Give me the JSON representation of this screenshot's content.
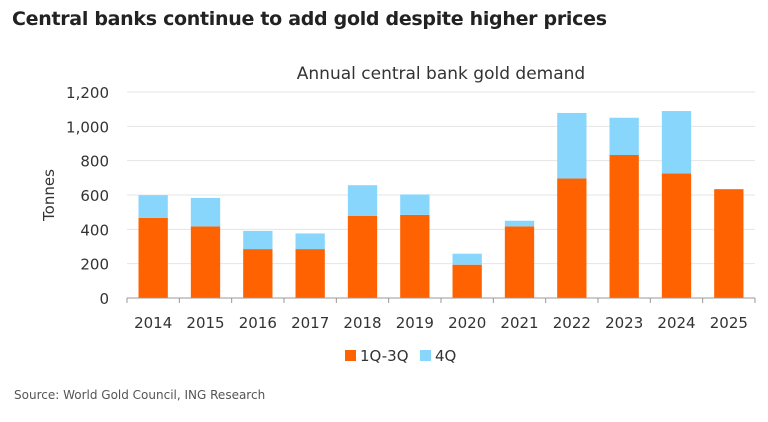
{
  "header": {
    "title": "Central banks continue to add gold despite higher prices"
  },
  "footer": {
    "source": "Source: World Gold Council, ING Research"
  },
  "chart_data": {
    "type": "bar",
    "stacked": true,
    "title": "Annual central bank gold demand",
    "xlabel": "",
    "ylabel": "Tonnes",
    "ylim": [
      0,
      1200
    ],
    "yticks": [
      0,
      200,
      400,
      600,
      800,
      1000,
      1200
    ],
    "ytick_labels": [
      "0",
      "200",
      "400",
      "600",
      "800",
      "1,000",
      "1,200"
    ],
    "grid": true,
    "legend": "bottom",
    "categories": [
      "2014",
      "2015",
      "2016",
      "2017",
      "2018",
      "2019",
      "2020",
      "2021",
      "2022",
      "2023",
      "2024",
      "2025"
    ],
    "series": [
      {
        "name": "1Q-3Q",
        "color": "#FF6200",
        "values": [
          467,
          417,
          285,
          285,
          479,
          484,
          194,
          417,
          696,
          833,
          725,
          634
        ]
      },
      {
        "name": "4Q",
        "color": "#89D6FD",
        "values": [
          132,
          166,
          106,
          91,
          178,
          119,
          64,
          33,
          382,
          217,
          364,
          0
        ]
      }
    ]
  }
}
